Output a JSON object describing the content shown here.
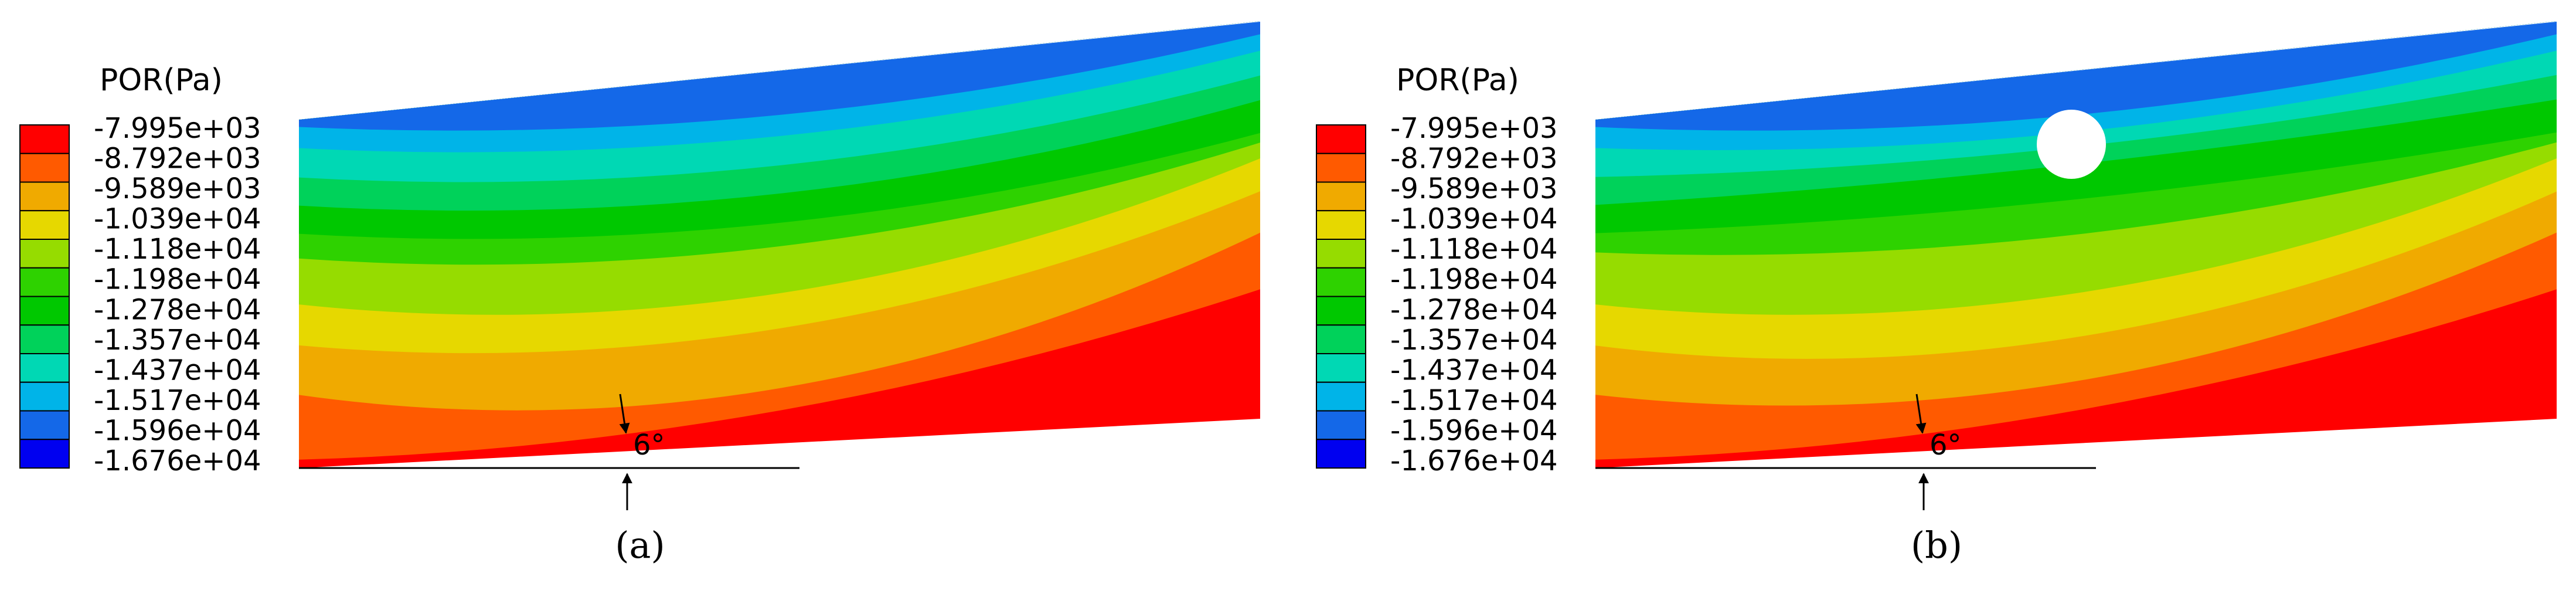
{
  "panels": [
    {
      "legend_title": "POR(Pa)",
      "legend_labels": [
        "-7.995e+03",
        "-8.792e+03",
        "-9.589e+03",
        "-1.039e+04",
        "-1.118e+04",
        "-1.198e+04",
        "-1.278e+04",
        "-1.357e+04",
        "-1.437e+04",
        "-1.517e+04",
        "-1.596e+04",
        "-1.676e+04"
      ],
      "angle": "6°",
      "caption": "(a)"
    },
    {
      "legend_title": "POR(Pa)",
      "legend_labels": [
        "-7.995e+03",
        "-8.792e+03",
        "-9.589e+03",
        "-1.039e+04",
        "-1.118e+04",
        "-1.198e+04",
        "-1.278e+04",
        "-1.357e+04",
        "-1.437e+04",
        "-1.517e+04",
        "-1.596e+04",
        "-1.676e+04"
      ],
      "angle": "6°",
      "caption": "(b)"
    }
  ]
}
